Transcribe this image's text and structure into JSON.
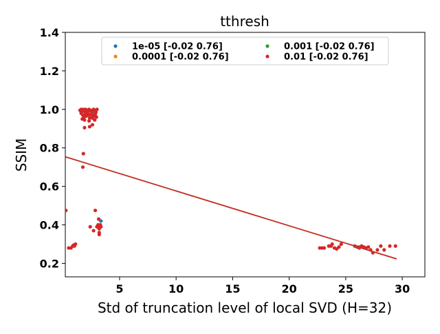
{
  "chart_data": {
    "type": "scatter",
    "title": "tthresh",
    "xlabel": "Std of truncation level of local SVD (H=32)",
    "ylabel": "SSIM",
    "xlim": [
      0.2,
      32.0
    ],
    "ylim": [
      0.13,
      1.4
    ],
    "xticks": [
      5,
      10,
      15,
      20,
      25,
      30
    ],
    "yticks": [
      0.2,
      0.4,
      0.6,
      0.8,
      1.0,
      1.2,
      1.4
    ],
    "grid": false,
    "legend": {
      "placement": "upper-center",
      "ncol": 2
    },
    "series": [
      {
        "name": "1e-05 [-0.02  0.76]",
        "color": "#1f77b4",
        "points": [
          [
            2.9,
            0.995
          ],
          [
            3.35,
            0.42
          ],
          [
            2.6,
            0.98
          ],
          [
            1.7,
            0.99
          ]
        ],
        "fit": {
          "slope": -0.0181,
          "intercept": 0.7572,
          "x_range": [
            0.25,
            29.5
          ]
        }
      },
      {
        "name": "0.0001 [-0.02  0.76]",
        "color": "#ff7f0e",
        "points": [
          [
            2.2,
            0.985
          ],
          [
            3.1,
            0.4
          ],
          [
            1.9,
            0.97
          ]
        ],
        "fit": {
          "slope": -0.0181,
          "intercept": 0.7572,
          "x_range": [
            0.25,
            29.5
          ]
        }
      },
      {
        "name": "0.001 [-0.02  0.76]",
        "color": "#2ca02c",
        "points": [
          [
            2.5,
            0.975
          ],
          [
            3.0,
            0.39
          ],
          [
            26.2,
            0.285
          ]
        ],
        "fit": {
          "slope": -0.0181,
          "intercept": 0.7572,
          "x_range": [
            0.25,
            29.5
          ]
        }
      },
      {
        "name": "0.01 [-0.02  0.76]",
        "color": "#d62728",
        "points": [
          [
            1.5,
            0.995
          ],
          [
            1.6,
            1.0
          ],
          [
            1.7,
            0.995
          ],
          [
            1.8,
            1.0
          ],
          [
            1.9,
            0.99
          ],
          [
            2.0,
            1.0
          ],
          [
            2.1,
            0.995
          ],
          [
            2.2,
            0.99
          ],
          [
            2.3,
            1.0
          ],
          [
            2.4,
            0.995
          ],
          [
            2.5,
            0.99
          ],
          [
            2.6,
            0.995
          ],
          [
            2.7,
            1.0
          ],
          [
            2.8,
            0.99
          ],
          [
            2.9,
            0.985
          ],
          [
            3.0,
            1.0
          ],
          [
            1.6,
            0.98
          ],
          [
            1.75,
            0.97
          ],
          [
            1.85,
            0.96
          ],
          [
            1.95,
            0.975
          ],
          [
            2.05,
            0.965
          ],
          [
            2.15,
            0.98
          ],
          [
            2.25,
            0.97
          ],
          [
            2.35,
            0.955
          ],
          [
            2.45,
            0.975
          ],
          [
            2.55,
            0.96
          ],
          [
            2.65,
            0.97
          ],
          [
            2.75,
            0.965
          ],
          [
            2.85,
            0.975
          ],
          [
            2.95,
            0.96
          ],
          [
            1.7,
            0.95
          ],
          [
            1.9,
            0.945
          ],
          [
            2.3,
            0.94
          ],
          [
            2.6,
            0.955
          ],
          [
            2.8,
            0.945
          ],
          [
            1.9,
            0.905
          ],
          [
            2.35,
            0.91
          ],
          [
            2.6,
            0.92
          ],
          [
            1.8,
            0.77
          ],
          [
            1.75,
            0.7
          ],
          [
            0.25,
            0.475
          ],
          [
            0.5,
            0.28
          ],
          [
            0.7,
            0.28
          ],
          [
            0.85,
            0.29
          ],
          [
            1.0,
            0.29
          ],
          [
            1.1,
            0.3
          ],
          [
            0.95,
            0.295
          ],
          [
            2.85,
            0.475
          ],
          [
            2.4,
            0.39
          ],
          [
            2.7,
            0.37
          ],
          [
            3.0,
            0.39
          ],
          [
            3.1,
            0.4
          ],
          [
            3.15,
            0.43
          ],
          [
            3.2,
            0.38
          ],
          [
            3.25,
            0.39
          ],
          [
            3.3,
            0.4
          ],
          [
            3.35,
            0.39
          ],
          [
            3.2,
            0.36
          ],
          [
            3.2,
            0.35
          ],
          [
            22.7,
            0.28
          ],
          [
            22.9,
            0.28
          ],
          [
            23.1,
            0.28
          ],
          [
            23.5,
            0.29
          ],
          [
            23.7,
            0.29
          ],
          [
            23.8,
            0.3
          ],
          [
            24.0,
            0.28
          ],
          [
            24.2,
            0.275
          ],
          [
            24.4,
            0.285
          ],
          [
            24.6,
            0.3
          ],
          [
            25.8,
            0.29
          ],
          [
            26.0,
            0.285
          ],
          [
            26.2,
            0.28
          ],
          [
            26.4,
            0.29
          ],
          [
            26.6,
            0.285
          ],
          [
            26.8,
            0.28
          ],
          [
            27.0,
            0.285
          ],
          [
            27.2,
            0.27
          ],
          [
            27.4,
            0.255
          ],
          [
            27.8,
            0.27
          ],
          [
            28.1,
            0.29
          ],
          [
            28.4,
            0.27
          ],
          [
            28.9,
            0.29
          ],
          [
            29.4,
            0.29
          ]
        ],
        "fit": {
          "slope": -0.0181,
          "intercept": 0.7572,
          "x_range": [
            0.25,
            29.5
          ]
        }
      }
    ]
  }
}
